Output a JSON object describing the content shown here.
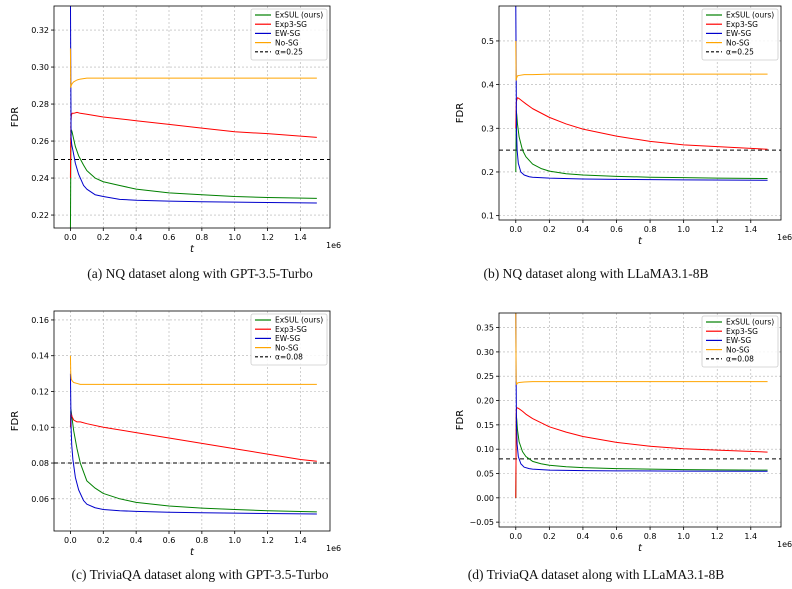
{
  "chart_data": [
    {
      "type": "line",
      "caption": "(a) NQ dataset along with GPT-3.5-Turbo",
      "xlabel": "t",
      "ylabel": "FDR",
      "x_offset_label": "1e6",
      "xlim": [
        -0.1,
        1.58
      ],
      "ylim": [
        0.213,
        0.333
      ],
      "xticks": [
        0.0,
        0.2,
        0.4,
        0.6,
        0.8,
        1.0,
        1.2,
        1.4
      ],
      "xtick_labels": [
        "0.0",
        "0.2",
        "0.4",
        "0.6",
        "0.8",
        "1.0",
        "1.2",
        "1.4"
      ],
      "yticks": [
        0.22,
        0.24,
        0.26,
        0.28,
        0.3,
        0.32
      ],
      "ytick_labels": [
        "0.22",
        "0.24",
        "0.26",
        "0.28",
        "0.30",
        "0.32"
      ],
      "grid": true,
      "legend_position": "top-right",
      "target_line": {
        "label": "α=0.25",
        "value": 0.25
      },
      "series": [
        {
          "name": "ExSUL (ours)",
          "color": "#008000",
          "x": [
            0,
            0.003,
            0.006,
            0.01,
            0.02,
            0.03,
            0.05,
            0.08,
            0.1,
            0.15,
            0.2,
            0.3,
            0.4,
            0.5,
            0.6,
            0.8,
            1.0,
            1.2,
            1.5
          ],
          "y": [
            0.21,
            0.262,
            0.266,
            0.265,
            0.261,
            0.257,
            0.252,
            0.247,
            0.244,
            0.24,
            0.238,
            0.236,
            0.234,
            0.233,
            0.232,
            0.231,
            0.23,
            0.2295,
            0.229
          ]
        },
        {
          "name": "Exp3-SG",
          "color": "#ff0000",
          "x": [
            0,
            0.003,
            0.006,
            0.01,
            0.02,
            0.04,
            0.06,
            0.1,
            0.2,
            0.4,
            0.6,
            0.8,
            1.0,
            1.2,
            1.5
          ],
          "y": [
            0.24,
            0.27,
            0.274,
            0.275,
            0.275,
            0.2755,
            0.275,
            0.2745,
            0.273,
            0.271,
            0.269,
            0.267,
            0.265,
            0.264,
            0.262
          ]
        },
        {
          "name": "EW-SG",
          "color": "#0000cc",
          "x": [
            0,
            0.002,
            0.004,
            0.008,
            0.015,
            0.03,
            0.05,
            0.08,
            0.1,
            0.15,
            0.2,
            0.3,
            0.4,
            0.6,
            0.8,
            1.0,
            1.2,
            1.5
          ],
          "y": [
            0.34,
            0.3,
            0.262,
            0.258,
            0.255,
            0.248,
            0.242,
            0.236,
            0.234,
            0.231,
            0.23,
            0.2285,
            0.228,
            0.2275,
            0.2272,
            0.227,
            0.2268,
            0.2265
          ]
        },
        {
          "name": "No-SG",
          "color": "#ffa500",
          "x": [
            0,
            0.002,
            0.005,
            0.01,
            0.02,
            0.04,
            0.06,
            0.1,
            0.2,
            0.5,
            1.0,
            1.5
          ],
          "y": [
            0.31,
            0.289,
            0.29,
            0.291,
            0.292,
            0.293,
            0.2935,
            0.294,
            0.294,
            0.294,
            0.294,
            0.294
          ]
        }
      ]
    },
    {
      "type": "line",
      "caption": "(b) NQ dataset along with LLaMA3.1-8B",
      "xlabel": "t",
      "ylabel": "FDR",
      "x_offset_label": "1e6",
      "xlim": [
        -0.1,
        1.58
      ],
      "ylim": [
        0.09,
        0.58
      ],
      "xticks": [
        0.0,
        0.2,
        0.4,
        0.6,
        0.8,
        1.0,
        1.2,
        1.4
      ],
      "xtick_labels": [
        "0.0",
        "0.2",
        "0.4",
        "0.6",
        "0.8",
        "1.0",
        "1.2",
        "1.4"
      ],
      "yticks": [
        0.1,
        0.2,
        0.3,
        0.4,
        0.5
      ],
      "ytick_labels": [
        "0.1",
        "0.2",
        "0.3",
        "0.4",
        "0.5"
      ],
      "grid": true,
      "legend_position": "top-right",
      "target_line": {
        "label": "α=0.25",
        "value": 0.25
      },
      "series": [
        {
          "name": "ExSUL (ours)",
          "color": "#008000",
          "x": [
            0,
            0.003,
            0.006,
            0.01,
            0.02,
            0.04,
            0.06,
            0.1,
            0.15,
            0.2,
            0.3,
            0.4,
            0.6,
            0.8,
            1.0,
            1.2,
            1.5
          ],
          "y": [
            0.2,
            0.34,
            0.33,
            0.31,
            0.28,
            0.25,
            0.235,
            0.218,
            0.208,
            0.202,
            0.196,
            0.193,
            0.19,
            0.188,
            0.187,
            0.186,
            0.185
          ]
        },
        {
          "name": "Exp3-SG",
          "color": "#ff0000",
          "x": [
            0,
            0.003,
            0.006,
            0.01,
            0.02,
            0.04,
            0.06,
            0.1,
            0.2,
            0.3,
            0.4,
            0.6,
            0.8,
            1.0,
            1.2,
            1.5
          ],
          "y": [
            0.3,
            0.36,
            0.365,
            0.37,
            0.368,
            0.362,
            0.356,
            0.345,
            0.325,
            0.31,
            0.298,
            0.282,
            0.27,
            0.262,
            0.258,
            0.252
          ]
        },
        {
          "name": "EW-SG",
          "color": "#0000cc",
          "x": [
            0,
            0.002,
            0.004,
            0.008,
            0.015,
            0.03,
            0.05,
            0.08,
            0.1,
            0.2,
            0.4,
            0.6,
            1.0,
            1.5
          ],
          "y": [
            0.58,
            0.45,
            0.3,
            0.25,
            0.22,
            0.2,
            0.193,
            0.189,
            0.188,
            0.186,
            0.184,
            0.183,
            0.182,
            0.181
          ]
        },
        {
          "name": "No-SG",
          "color": "#ffa500",
          "x": [
            0,
            0.002,
            0.005,
            0.01,
            0.02,
            0.05,
            0.1,
            0.2,
            0.5,
            1.0,
            1.5
          ],
          "y": [
            0.5,
            0.41,
            0.415,
            0.42,
            0.421,
            0.423,
            0.423,
            0.424,
            0.424,
            0.424,
            0.424
          ]
        }
      ]
    },
    {
      "type": "line",
      "caption": "(c) TriviaQA dataset along with GPT-3.5-Turbo",
      "xlabel": "t",
      "ylabel": "FDR",
      "x_offset_label": "1e6",
      "xlim": [
        -0.1,
        1.58
      ],
      "ylim": [
        0.042,
        0.165
      ],
      "xticks": [
        0.0,
        0.2,
        0.4,
        0.6,
        0.8,
        1.0,
        1.2,
        1.4
      ],
      "xtick_labels": [
        "0.0",
        "0.2",
        "0.4",
        "0.6",
        "0.8",
        "1.0",
        "1.2",
        "1.4"
      ],
      "yticks": [
        0.06,
        0.08,
        0.1,
        0.12,
        0.14,
        0.16
      ],
      "ytick_labels": [
        "0.06",
        "0.08",
        "0.10",
        "0.12",
        "0.14",
        "0.16"
      ],
      "grid": true,
      "legend_position": "top-right",
      "target_line": {
        "label": "α=0.08",
        "value": 0.08
      },
      "series": [
        {
          "name": "ExSUL (ours)",
          "color": "#008000",
          "x": [
            0,
            0.003,
            0.006,
            0.01,
            0.02,
            0.04,
            0.06,
            0.1,
            0.15,
            0.2,
            0.3,
            0.4,
            0.6,
            0.8,
            1.0,
            1.2,
            1.5
          ],
          "y": [
            0.1,
            0.11,
            0.108,
            0.105,
            0.098,
            0.088,
            0.08,
            0.07,
            0.066,
            0.063,
            0.06,
            0.058,
            0.056,
            0.0548,
            0.054,
            0.0533,
            0.0527
          ]
        },
        {
          "name": "Exp3-SG",
          "color": "#ff0000",
          "x": [
            0,
            0.003,
            0.006,
            0.01,
            0.02,
            0.04,
            0.06,
            0.1,
            0.2,
            0.4,
            0.6,
            0.8,
            1.0,
            1.2,
            1.4,
            1.5
          ],
          "y": [
            0.1,
            0.108,
            0.107,
            0.106,
            0.104,
            0.103,
            0.103,
            0.102,
            0.1,
            0.097,
            0.094,
            0.091,
            0.088,
            0.085,
            0.082,
            0.081
          ]
        },
        {
          "name": "EW-SG",
          "color": "#0000cc",
          "x": [
            0,
            0.002,
            0.004,
            0.008,
            0.015,
            0.03,
            0.05,
            0.08,
            0.1,
            0.15,
            0.2,
            0.3,
            0.4,
            0.6,
            0.8,
            1.0,
            1.5
          ],
          "y": [
            0.13,
            0.115,
            0.1,
            0.09,
            0.082,
            0.072,
            0.065,
            0.059,
            0.057,
            0.055,
            0.054,
            0.0533,
            0.053,
            0.0525,
            0.0522,
            0.052,
            0.0515
          ]
        },
        {
          "name": "No-SG",
          "color": "#ffa500",
          "x": [
            0,
            0.002,
            0.005,
            0.01,
            0.02,
            0.04,
            0.06,
            0.1,
            0.2,
            0.5,
            1.0,
            1.5
          ],
          "y": [
            0.14,
            0.13,
            0.127,
            0.126,
            0.125,
            0.1245,
            0.124,
            0.124,
            0.124,
            0.124,
            0.124,
            0.124
          ]
        }
      ]
    },
    {
      "type": "line",
      "caption": "(d) TriviaQA dataset along with LLaMA3.1-8B",
      "xlabel": "t",
      "ylabel": "FDR",
      "x_offset_label": "1e6",
      "xlim": [
        -0.1,
        1.58
      ],
      "ylim": [
        -0.06,
        0.38
      ],
      "xticks": [
        0.0,
        0.2,
        0.4,
        0.6,
        0.8,
        1.0,
        1.2,
        1.4
      ],
      "xtick_labels": [
        "0.0",
        "0.2",
        "0.4",
        "0.6",
        "0.8",
        "1.0",
        "1.2",
        "1.4"
      ],
      "yticks": [
        -0.05,
        0.0,
        0.05,
        0.1,
        0.15,
        0.2,
        0.25,
        0.3,
        0.35
      ],
      "ytick_labels": [
        "−0.05",
        "0.00",
        "0.05",
        "0.10",
        "0.15",
        "0.20",
        "0.25",
        "0.30",
        "0.35"
      ],
      "grid": true,
      "legend_position": "top-right",
      "target_line": {
        "label": "α=0.08",
        "value": 0.08
      },
      "series": [
        {
          "name": "ExSUL (ours)",
          "color": "#008000",
          "x": [
            0,
            0.003,
            0.006,
            0.01,
            0.02,
            0.04,
            0.06,
            0.1,
            0.15,
            0.2,
            0.3,
            0.4,
            0.6,
            0.8,
            1.0,
            1.2,
            1.5
          ],
          "y": [
            0.0,
            0.17,
            0.16,
            0.14,
            0.115,
            0.095,
            0.085,
            0.075,
            0.07,
            0.067,
            0.064,
            0.062,
            0.06,
            0.059,
            0.058,
            0.0575,
            0.057
          ]
        },
        {
          "name": "Exp3-SG",
          "color": "#ff0000",
          "x": [
            0,
            0.003,
            0.006,
            0.01,
            0.02,
            0.04,
            0.06,
            0.1,
            0.2,
            0.3,
            0.4,
            0.6,
            0.8,
            1.0,
            1.2,
            1.5
          ],
          "y": [
            0.0,
            0.18,
            0.185,
            0.185,
            0.183,
            0.178,
            0.172,
            0.163,
            0.146,
            0.135,
            0.126,
            0.114,
            0.106,
            0.101,
            0.098,
            0.094
          ]
        },
        {
          "name": "EW-SG",
          "color": "#0000cc",
          "x": [
            0,
            0.002,
            0.004,
            0.008,
            0.015,
            0.03,
            0.05,
            0.08,
            0.1,
            0.2,
            0.4,
            0.6,
            1.0,
            1.5
          ],
          "y": [
            0.38,
            0.25,
            0.15,
            0.11,
            0.085,
            0.07,
            0.063,
            0.06,
            0.059,
            0.057,
            0.056,
            0.0555,
            0.055,
            0.0545
          ]
        },
        {
          "name": "No-SG",
          "color": "#ffa500",
          "x": [
            0,
            0.002,
            0.005,
            0.01,
            0.02,
            0.05,
            0.1,
            0.2,
            0.5,
            1.0,
            1.5
          ],
          "y": [
            0.38,
            0.24,
            0.233,
            0.236,
            0.237,
            0.238,
            0.239,
            0.239,
            0.239,
            0.239,
            0.239
          ]
        }
      ]
    }
  ]
}
